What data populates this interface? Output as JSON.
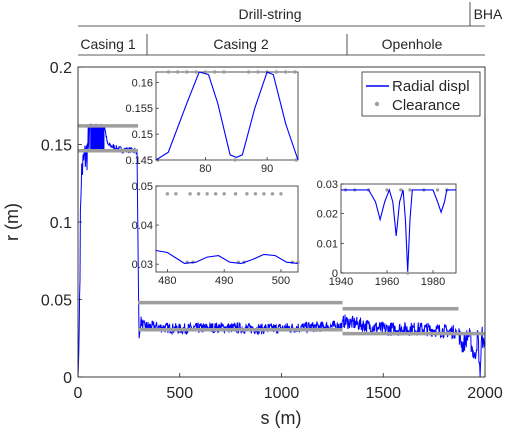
{
  "chart_data": {
    "type": "line",
    "xlabel": "s (m)",
    "ylabel": "r (m)",
    "xlim": [
      0,
      2000
    ],
    "ylim": [
      0,
      0.2
    ],
    "xticks": [
      "0",
      "500",
      "1000",
      "1500",
      "2000"
    ],
    "yticks": [
      "0",
      "0.05",
      "0.1",
      "0.15",
      "0.2"
    ],
    "legend": {
      "position": "top-right",
      "entries": [
        "Radial displ",
        "Clearance"
      ]
    },
    "colors": {
      "radial": "#0000ff",
      "clearance": "#9e9e9e"
    },
    "sections": {
      "top": [
        {
          "label": "Drill-string",
          "from": 0,
          "to": 1870
        },
        {
          "label": "BHA",
          "from": 1870,
          "to": 2000
        }
      ],
      "bottom": [
        {
          "label": "Casing 1",
          "from": 0,
          "to": 295
        },
        {
          "label": "Casing 2",
          "from": 295,
          "to": 1300
        },
        {
          "label": "Openhole",
          "from": 1300,
          "to": 2000
        }
      ]
    },
    "clearance": [
      {
        "x": [
          0,
          295
        ],
        "y": [
          0.146,
          0.146
        ]
      },
      {
        "x": [
          0,
          295
        ],
        "y": [
          0.162,
          0.162
        ]
      },
      {
        "x": [
          295,
          1300
        ],
        "y": [
          0.0305,
          0.0305
        ]
      },
      {
        "x": [
          295,
          1300
        ],
        "y": [
          0.048,
          0.048
        ]
      },
      {
        "x": [
          1300,
          2000
        ],
        "y": [
          0.028,
          0.028
        ]
      },
      {
        "x": [
          1300,
          1870
        ],
        "y": [
          0.044,
          0.044
        ]
      }
    ],
    "radial_keypoints": [
      [
        0,
        0
      ],
      [
        5,
        0.02
      ],
      [
        15,
        0.13
      ],
      [
        30,
        0.14
      ],
      [
        45,
        0.145
      ],
      [
        60,
        0.162
      ],
      [
        130,
        0.162
      ],
      [
        145,
        0.15
      ],
      [
        200,
        0.147
      ],
      [
        290,
        0.146
      ],
      [
        300,
        0.025
      ],
      [
        310,
        0.036
      ],
      [
        320,
        0.033
      ],
      [
        500,
        0.031
      ],
      [
        700,
        0.032
      ],
      [
        900,
        0.031
      ],
      [
        1100,
        0.032
      ],
      [
        1300,
        0.033
      ],
      [
        1305,
        0.036
      ],
      [
        1500,
        0.031
      ],
      [
        1700,
        0.031
      ],
      [
        1860,
        0.029
      ],
      [
        1870,
        0.028
      ],
      [
        1890,
        0.02
      ],
      [
        1920,
        0.028
      ],
      [
        1950,
        0.012
      ],
      [
        1965,
        0.028
      ],
      [
        1975,
        0.0
      ],
      [
        1985,
        0.028
      ],
      [
        1995,
        0.018
      ],
      [
        2000,
        0.028
      ]
    ],
    "insets": [
      {
        "id": "inset-a",
        "xlim": [
          72,
          95
        ],
        "ylim": [
          0.145,
          0.162
        ],
        "xticks": [
          "80",
          "90"
        ],
        "yticks": [
          "0.145",
          "0.15",
          "0.155",
          "0.16"
        ],
        "radial": [
          [
            72,
            0.145
          ],
          [
            74,
            0.1465
          ],
          [
            77,
            0.156
          ],
          [
            79,
            0.162
          ],
          [
            80.5,
            0.1615
          ],
          [
            82,
            0.156
          ],
          [
            84,
            0.146
          ],
          [
            85,
            0.1455
          ],
          [
            86,
            0.146
          ],
          [
            88,
            0.155
          ],
          [
            90,
            0.162
          ],
          [
            91,
            0.1615
          ],
          [
            93,
            0.152
          ],
          [
            95,
            0.145
          ]
        ],
        "clearance_hi": [
          74,
          75.5,
          77,
          78.5,
          80,
          81.5,
          83,
          87,
          88.5,
          90,
          91.5,
          93,
          94.5
        ],
        "clearance_lo": [
          72.3,
          84.8,
          94.7
        ],
        "hi_value": 0.162,
        "lo_value": 0.145
      },
      {
        "id": "inset-b",
        "xlim": [
          478,
          503
        ],
        "ylim": [
          0.028,
          0.05
        ],
        "xticks": [
          "480",
          "490",
          "500"
        ],
        "yticks": [
          "0.03",
          "0.04",
          "0.05"
        ],
        "radial": [
          [
            478,
            0.0335
          ],
          [
            480,
            0.033
          ],
          [
            483,
            0.0302
          ],
          [
            485,
            0.0305
          ],
          [
            487,
            0.0318
          ],
          [
            489,
            0.0322
          ],
          [
            491,
            0.0305
          ],
          [
            493,
            0.0302
          ],
          [
            495,
            0.0312
          ],
          [
            497,
            0.0325
          ],
          [
            499,
            0.0322
          ],
          [
            501,
            0.0305
          ],
          [
            503,
            0.0302
          ]
        ],
        "clearance_hi": [
          480,
          481.5,
          484,
          485.5,
          487,
          488.5,
          490,
          492,
          494,
          495.5,
          497,
          498.5,
          500
        ],
        "clearance_lo": [
          483.5,
          484.5,
          492.5,
          493.5,
          502,
          503
        ],
        "hi_value": 0.048,
        "lo_value": 0.0305
      },
      {
        "id": "inset-c",
        "xlim": [
          1940,
          1990
        ],
        "ylim": [
          0,
          0.03
        ],
        "xticks": [
          "1940",
          "1960",
          "1980"
        ],
        "yticks": [
          "0",
          "0.01",
          "0.02",
          "0.03"
        ],
        "radial": [
          [
            1940,
            0.028
          ],
          [
            1952,
            0.028
          ],
          [
            1955,
            0.024
          ],
          [
            1957,
            0.018
          ],
          [
            1959,
            0.024
          ],
          [
            1961,
            0.028
          ],
          [
            1962.5,
            0.024
          ],
          [
            1964,
            0.0125
          ],
          [
            1965.5,
            0.024
          ],
          [
            1967,
            0.028
          ],
          [
            1968,
            0.018
          ],
          [
            1969,
            0.0005
          ],
          [
            1970,
            0.018
          ],
          [
            1971,
            0.028
          ],
          [
            1980,
            0.028
          ],
          [
            1982,
            0.024
          ],
          [
            1983.5,
            0.0205
          ],
          [
            1985,
            0.024
          ],
          [
            1986,
            0.028
          ],
          [
            1990,
            0.028
          ]
        ],
        "clearance_hi": [
          1942,
          1946,
          1952,
          1960,
          1966,
          1970,
          1976,
          1982,
          1986
        ],
        "clearance_lo": [
          1969
        ],
        "hi_value": 0.028,
        "lo_value": 0.0
      }
    ]
  }
}
